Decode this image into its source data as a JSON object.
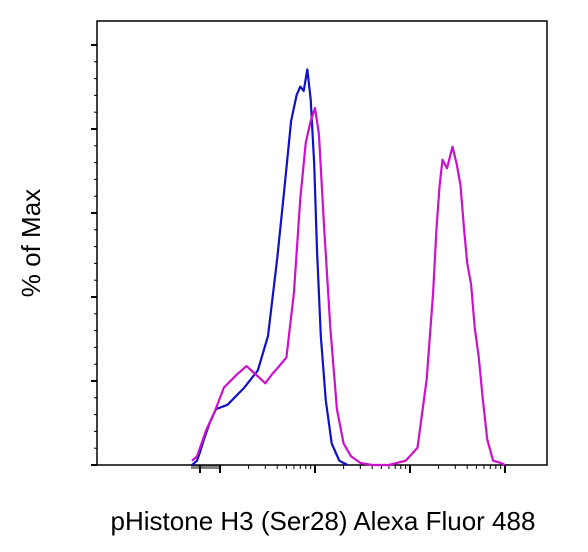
{
  "chart_data": {
    "type": "line",
    "title": "",
    "xlabel": "pHistone H3 (Ser28) Alexa Fluor 488",
    "ylabel": "% of Max",
    "x_scale": "log",
    "xlim": [
      -40,
      100000
    ],
    "ylim": [
      0,
      100
    ],
    "grid": false,
    "legend": "none",
    "tick_labels_shown": false,
    "series": [
      {
        "color": "#1010c8",
        "x": [
          -40,
          -15,
          0,
          20,
          50,
          80,
          120,
          180,
          250,
          320,
          400,
          480,
          560,
          640,
          700,
          760,
          830,
          900,
          980,
          1050,
          1150,
          1300,
          1500,
          1800,
          2200
        ],
        "y": [
          0,
          1,
          3,
          6,
          10,
          13,
          14,
          18,
          22,
          30,
          48,
          65,
          80,
          86,
          88,
          87,
          92,
          85,
          70,
          50,
          30,
          15,
          5,
          1,
          0
        ]
      },
      {
        "color": "#cc10cc",
        "x": [
          -40,
          -15,
          0,
          30,
          70,
          110,
          150,
          190,
          240,
          300,
          350,
          420,
          500,
          600,
          700,
          800,
          900,
          1000,
          1100,
          1250,
          1450,
          1700,
          2000,
          2400,
          3000,
          4000,
          6000,
          9000,
          12000,
          15000,
          17500,
          19000,
          20500,
          22000,
          24500,
          28000,
          31000,
          34000,
          37000,
          40000,
          44000,
          48000,
          53000,
          58000,
          65000,
          75000,
          90000,
          100000
        ],
        "y": [
          1,
          2,
          4,
          8,
          12,
          18,
          21,
          23,
          21,
          19,
          21,
          23,
          25,
          40,
          62,
          75,
          80,
          83,
          77,
          55,
          32,
          13,
          5,
          2,
          0.5,
          0,
          0,
          1,
          4,
          20,
          40,
          55,
          65,
          71,
          69,
          74,
          70,
          65,
          55,
          47,
          42,
          32,
          25,
          16,
          6,
          1,
          0.5,
          0
        ]
      }
    ]
  }
}
